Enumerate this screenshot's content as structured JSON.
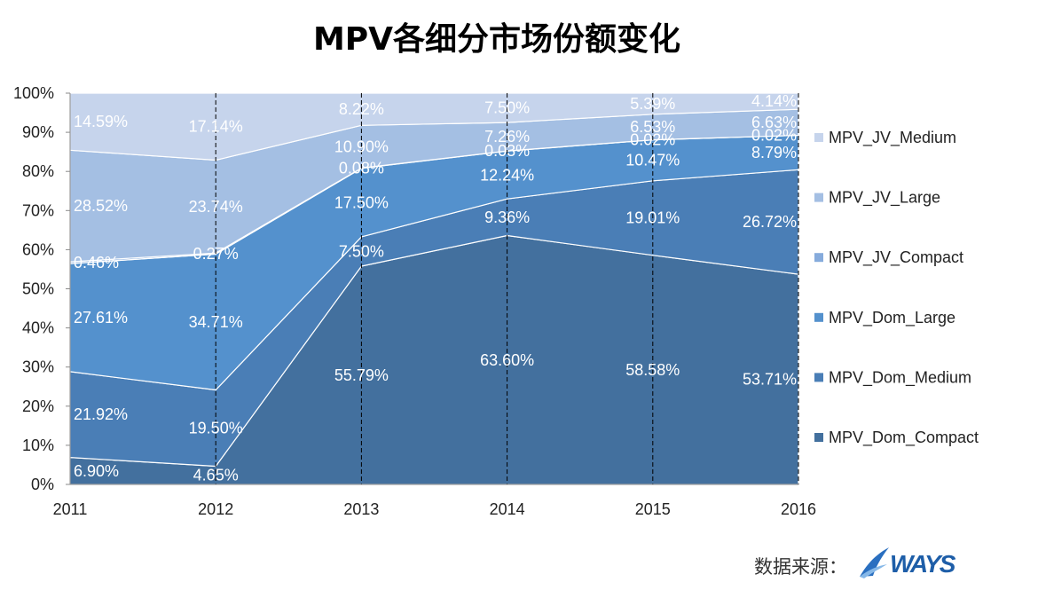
{
  "source": {
    "label": "数据来源：",
    "logo_text": "WAYS"
  },
  "chart_data": {
    "type": "area",
    "stacked": "percent",
    "title": "MPV各细分市场份额变化",
    "x": [
      "2011",
      "2012",
      "2013",
      "2014",
      "2015",
      "2016"
    ],
    "ylim": [
      0,
      100
    ],
    "yticks": [
      "0%",
      "10%",
      "20%",
      "30%",
      "40%",
      "50%",
      "60%",
      "70%",
      "80%",
      "90%",
      "100%"
    ],
    "grid": "vertical-dashed",
    "legend": "right",
    "series": [
      {
        "name": "MPV_Dom_Compact",
        "color": "#43709e",
        "values": [
          6.9,
          4.65,
          55.79,
          63.6,
          58.58,
          53.71
        ],
        "labels": [
          "6.90%",
          "4.65%",
          "55.79%",
          "63.60%",
          "58.58%",
          "53.71%"
        ]
      },
      {
        "name": "MPV_Dom_Medium",
        "color": "#4a7eb6",
        "values": [
          21.92,
          19.5,
          7.5,
          9.36,
          19.01,
          26.72
        ],
        "labels": [
          "21.92%",
          "19.50%",
          "7.50%",
          "9.36%",
          "19.01%",
          "26.72%"
        ]
      },
      {
        "name": "MPV_Dom_Large",
        "color": "#5491cd",
        "values": [
          27.61,
          34.71,
          17.5,
          12.24,
          10.47,
          8.79
        ],
        "labels": [
          "27.61%",
          "34.71%",
          "17.50%",
          "12.24%",
          "10.47%",
          "8.79%"
        ]
      },
      {
        "name": "MPV_JV_Compact",
        "color": "#86abdc",
        "values": [
          0.46,
          0.27,
          0.08,
          0.03,
          0.02,
          0.02
        ],
        "labels": [
          "0.46%",
          "0.27%",
          "0.08%",
          "0.03%",
          "0.02%",
          "0.02%"
        ]
      },
      {
        "name": "MPV_JV_Large",
        "color": "#a4bfe3",
        "values": [
          28.52,
          23.74,
          10.9,
          7.26,
          6.53,
          6.63
        ],
        "labels": [
          "28.52%",
          "23.74%",
          "10.90%",
          "7.26%",
          "6.53%",
          "6.63%"
        ]
      },
      {
        "name": "MPV_JV_Medium",
        "color": "#c6d4ec",
        "values": [
          14.59,
          17.14,
          8.22,
          7.5,
          5.39,
          4.14
        ],
        "labels": [
          "14.59%",
          "17.14%",
          "8.22%",
          "7.50%",
          "5.39%",
          "4.14%"
        ]
      }
    ]
  }
}
